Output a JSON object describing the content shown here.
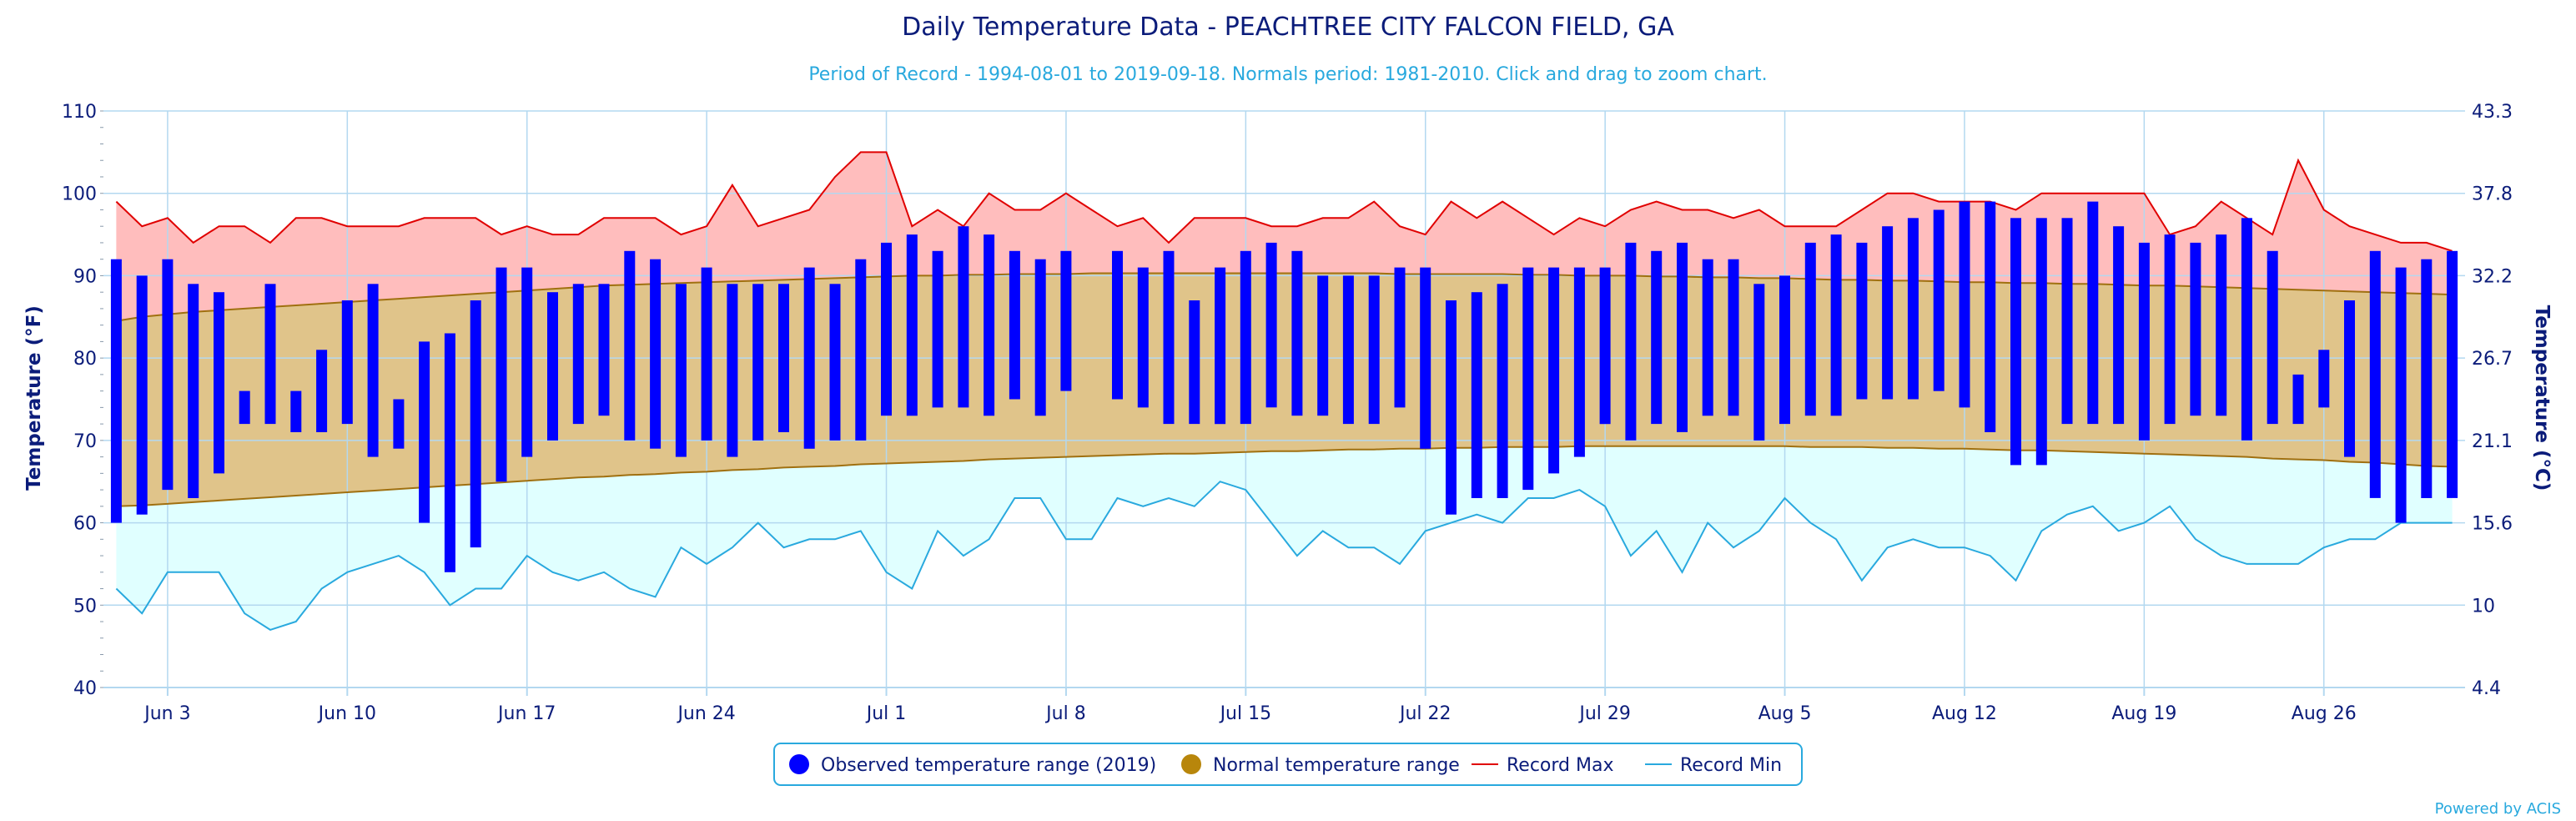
{
  "chart_data": {
    "type": "bar",
    "title": "Daily Temperature Data - PEACHTREE CITY FALCON FIELD, GA",
    "subtitle": "Period of Record - 1994-08-01 to 2019-09-18. Normals period: 1981-2010. Click and drag to zoom chart.",
    "ylabel": "Temperature (°F)",
    "ylabel_right": "Temperature (°C)",
    "ylim": [
      40,
      110
    ],
    "yticks": [
      40,
      50,
      60,
      70,
      80,
      90,
      100,
      110
    ],
    "yticks_right": [
      "4.4",
      "10",
      "15.6",
      "21.1",
      "26.7",
      "32.2",
      "37.8",
      "43.3"
    ],
    "x_day_range": [
      1,
      92
    ],
    "x_tick_days": [
      3,
      10,
      17,
      24,
      31,
      38,
      45,
      52,
      59,
      66,
      73,
      80,
      87
    ],
    "x_tick_labels": [
      "Jun 3",
      "Jun 10",
      "Jun 17",
      "Jun 24",
      "Jul 1",
      "Jul 8",
      "Jul 15",
      "Jul 22",
      "Jul 29",
      "Aug 5",
      "Aug 12",
      "Aug 19",
      "Aug 26"
    ],
    "record_max": [
      99,
      96,
      97,
      94,
      96,
      96,
      94,
      97,
      97,
      96,
      96,
      96,
      97,
      97,
      97,
      95,
      96,
      95,
      95,
      97,
      97,
      97,
      95,
      96,
      101,
      96,
      97,
      98,
      102,
      105,
      105,
      96,
      98,
      96,
      100,
      98,
      98,
      100,
      98,
      96,
      97,
      94,
      97,
      97,
      97,
      96,
      96,
      97,
      97,
      99,
      96,
      95,
      99,
      97,
      99,
      97,
      95,
      97,
      96,
      98,
      99,
      98,
      98,
      97,
      98,
      96,
      96,
      96,
      98,
      100,
      100,
      99,
      99,
      99,
      98,
      100,
      100,
      100,
      100,
      100,
      95,
      96,
      99,
      97,
      95,
      104,
      98,
      96,
      95,
      94,
      94,
      93
    ],
    "record_min": [
      52,
      49,
      54,
      54,
      54,
      49,
      47,
      48,
      52,
      54,
      55,
      56,
      54,
      50,
      52,
      52,
      56,
      54,
      53,
      54,
      52,
      51,
      57,
      55,
      57,
      60,
      57,
      58,
      58,
      59,
      54,
      52,
      59,
      56,
      58,
      63,
      63,
      58,
      58,
      63,
      62,
      63,
      62,
      65,
      64,
      60,
      56,
      59,
      57,
      57,
      55,
      59,
      60,
      61,
      60,
      63,
      63,
      64,
      62,
      56,
      59,
      54,
      60,
      57,
      59,
      63,
      60,
      58,
      53,
      57,
      58,
      57,
      57,
      56,
      53,
      59,
      61,
      62,
      59,
      60,
      62,
      58,
      56,
      55,
      55,
      55,
      57,
      58,
      58,
      60,
      60,
      60
    ],
    "normal_max": [
      84.5,
      85.0,
      85.3,
      85.6,
      85.8,
      86.0,
      86.2,
      86.4,
      86.6,
      86.8,
      87.0,
      87.2,
      87.4,
      87.6,
      87.8,
      88.0,
      88.2,
      88.4,
      88.6,
      88.8,
      88.9,
      89.0,
      89.1,
      89.2,
      89.3,
      89.4,
      89.5,
      89.6,
      89.7,
      89.8,
      89.9,
      90.0,
      90.0,
      90.1,
      90.1,
      90.2,
      90.2,
      90.2,
      90.3,
      90.3,
      90.3,
      90.3,
      90.3,
      90.3,
      90.3,
      90.3,
      90.3,
      90.3,
      90.3,
      90.3,
      90.2,
      90.2,
      90.2,
      90.2,
      90.2,
      90.1,
      90.1,
      90.0,
      90.0,
      90.0,
      89.9,
      89.9,
      89.8,
      89.8,
      89.7,
      89.7,
      89.6,
      89.5,
      89.5,
      89.4,
      89.4,
      89.3,
      89.2,
      89.2,
      89.1,
      89.1,
      89.0,
      89.0,
      88.9,
      88.8,
      88.8,
      88.7,
      88.6,
      88.5,
      88.4,
      88.3,
      88.2,
      88.1,
      88.0,
      87.9,
      87.8,
      87.7
    ],
    "normal_min": [
      62.0,
      62.1,
      62.3,
      62.5,
      62.7,
      62.9,
      63.1,
      63.3,
      63.5,
      63.7,
      63.9,
      64.1,
      64.3,
      64.5,
      64.7,
      64.9,
      65.1,
      65.3,
      65.5,
      65.6,
      65.8,
      65.9,
      66.1,
      66.2,
      66.4,
      66.5,
      66.7,
      66.8,
      66.9,
      67.1,
      67.2,
      67.3,
      67.4,
      67.5,
      67.7,
      67.8,
      67.9,
      68.0,
      68.1,
      68.2,
      68.3,
      68.4,
      68.4,
      68.5,
      68.6,
      68.7,
      68.7,
      68.8,
      68.9,
      68.9,
      69.0,
      69.0,
      69.1,
      69.1,
      69.2,
      69.2,
      69.2,
      69.3,
      69.3,
      69.3,
      69.3,
      69.3,
      69.3,
      69.3,
      69.3,
      69.3,
      69.2,
      69.2,
      69.2,
      69.1,
      69.1,
      69.0,
      69.0,
      68.9,
      68.8,
      68.8,
      68.7,
      68.6,
      68.5,
      68.4,
      68.3,
      68.2,
      68.1,
      68.0,
      67.8,
      67.7,
      67.6,
      67.4,
      67.3,
      67.1,
      66.9,
      66.8
    ],
    "observed_days": [
      1,
      2,
      3,
      4,
      5,
      6,
      7,
      8,
      9,
      10,
      11,
      12,
      13,
      14,
      15,
      16,
      17,
      18,
      19,
      20,
      21,
      22,
      23,
      24,
      25,
      26,
      27,
      28,
      29,
      30,
      31,
      32,
      33,
      34,
      35,
      36,
      37,
      38,
      40,
      41,
      42,
      43,
      44,
      45,
      46,
      47,
      48,
      49,
      50,
      51,
      52,
      53,
      54,
      55,
      56,
      57,
      58,
      59,
      60,
      61,
      62,
      63,
      64,
      65,
      66,
      67,
      68,
      69,
      70,
      71,
      72,
      73,
      74,
      75,
      76,
      77,
      78,
      79,
      80,
      81,
      82,
      83,
      84,
      85,
      86,
      87,
      88,
      89,
      90,
      91,
      92
    ],
    "observed_high": [
      92,
      90,
      92,
      89,
      88,
      76,
      89,
      76,
      81,
      87,
      89,
      75,
      82,
      83,
      87,
      91,
      91,
      88,
      89,
      89,
      93,
      92,
      89,
      91,
      89,
      89,
      89,
      91,
      89,
      92,
      94,
      95,
      93,
      96,
      95,
      93,
      92,
      93,
      93,
      91,
      93,
      87,
      91,
      93,
      94,
      93,
      90,
      90,
      90,
      91,
      91,
      87,
      88,
      89,
      91,
      91,
      91,
      91,
      94,
      93,
      94,
      92,
      92,
      89,
      90,
      94,
      95,
      94,
      96,
      97,
      98,
      99,
      99,
      97,
      97,
      97,
      99,
      96,
      94,
      95,
      94,
      95,
      97,
      93,
      78,
      81,
      87,
      93,
      91,
      92,
      93
    ],
    "observed_low": [
      60,
      61,
      64,
      63,
      66,
      72,
      72,
      71,
      71,
      72,
      68,
      69,
      60,
      54,
      57,
      65,
      68,
      70,
      72,
      73,
      70,
      69,
      68,
      70,
      68,
      70,
      71,
      69,
      70,
      70,
      73,
      73,
      74,
      74,
      73,
      75,
      73,
      76,
      75,
      74,
      72,
      72,
      72,
      72,
      74,
      73,
      73,
      72,
      72,
      74,
      69,
      61,
      63,
      63,
      64,
      66,
      68,
      72,
      70,
      72,
      71,
      73,
      73,
      70,
      72,
      73,
      73,
      75,
      75,
      75,
      76,
      74,
      71,
      67,
      67,
      72,
      72,
      72,
      70,
      72,
      73,
      73,
      70,
      72,
      72,
      74,
      68,
      63,
      60,
      63,
      63
    ],
    "legend": [
      "Observed temperature range (2019)",
      "Normal temperature range",
      "Record Max",
      "Record Min"
    ],
    "legend_position": "bottom-center",
    "grid": true,
    "colors": {
      "observed": "#0000ff",
      "normal_fill": "#e0c48a",
      "normal_line": "#a07010",
      "legend_normal_marker": "#b8860b",
      "record_max_fill": "#ffbdbd",
      "record_max_line": "#e00000",
      "record_min_fill": "#e0ffff",
      "record_min_line": "#29a9de",
      "grid": "#b3d8f0",
      "text": "#0b1c7a",
      "subtitle": "#29a9de"
    },
    "credit": "Powered by ACIS"
  }
}
